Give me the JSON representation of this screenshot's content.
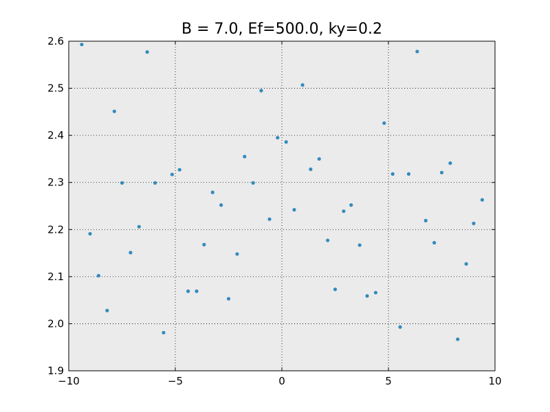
{
  "chart_data": {
    "type": "scatter",
    "title": "B = 7.0, Ef=500.0, ky=0.2",
    "xlabel": "",
    "ylabel": "",
    "xlim": [
      -10,
      10
    ],
    "ylim": [
      1.9,
      2.6
    ],
    "xticks": [
      -10,
      -5,
      0,
      5,
      10
    ],
    "yticks": [
      1.9,
      2.0,
      2.1,
      2.2,
      2.3,
      2.4,
      2.5,
      2.6
    ],
    "xtick_labels": [
      "−10",
      "−5",
      "0",
      "5",
      "10"
    ],
    "ytick_labels": [
      "1.9",
      "2.0",
      "2.1",
      "2.2",
      "2.3",
      "2.4",
      "2.5",
      "2.6"
    ],
    "grid": true,
    "background_color": "#ebebeb",
    "marker_color": "#348abd",
    "series": [
      {
        "points": [
          [
            -9.39,
            2.593
          ],
          [
            -6.32,
            2.577
          ],
          [
            -7.86,
            2.451
          ],
          [
            -7.5,
            2.299
          ],
          [
            -9.0,
            2.191
          ],
          [
            -8.6,
            2.102
          ],
          [
            -8.2,
            2.028
          ],
          [
            -7.1,
            2.151
          ],
          [
            -6.7,
            2.206
          ],
          [
            -5.95,
            2.299
          ],
          [
            -5.15,
            2.317
          ],
          [
            -4.8,
            2.327
          ],
          [
            -5.55,
            1.981
          ],
          [
            -4.4,
            2.069
          ],
          [
            -4.0,
            2.069
          ],
          [
            -3.65,
            2.168
          ],
          [
            -3.25,
            2.279
          ],
          [
            -2.85,
            2.252
          ],
          [
            -2.5,
            2.053
          ],
          [
            -2.1,
            2.148
          ],
          [
            -1.75,
            2.355
          ],
          [
            -1.35,
            2.299
          ],
          [
            -0.97,
            2.495
          ],
          [
            -0.58,
            2.222
          ],
          [
            -0.2,
            2.395
          ],
          [
            0.2,
            2.386
          ],
          [
            0.58,
            2.242
          ],
          [
            0.97,
            2.507
          ],
          [
            1.35,
            2.328
          ],
          [
            1.75,
            2.35
          ],
          [
            2.15,
            2.177
          ],
          [
            2.5,
            2.073
          ],
          [
            2.9,
            2.239
          ],
          [
            3.25,
            2.252
          ],
          [
            3.65,
            2.167
          ],
          [
            4.0,
            2.059
          ],
          [
            4.4,
            2.066
          ],
          [
            4.8,
            2.426
          ],
          [
            5.2,
            2.318
          ],
          [
            5.55,
            1.993
          ],
          [
            5.95,
            2.318
          ],
          [
            6.35,
            2.578
          ],
          [
            6.75,
            2.219
          ],
          [
            7.15,
            2.172
          ],
          [
            7.5,
            2.321
          ],
          [
            7.9,
            2.341
          ],
          [
            8.25,
            1.967
          ],
          [
            8.65,
            2.127
          ],
          [
            9.0,
            2.213
          ],
          [
            9.4,
            2.263
          ]
        ]
      }
    ]
  }
}
